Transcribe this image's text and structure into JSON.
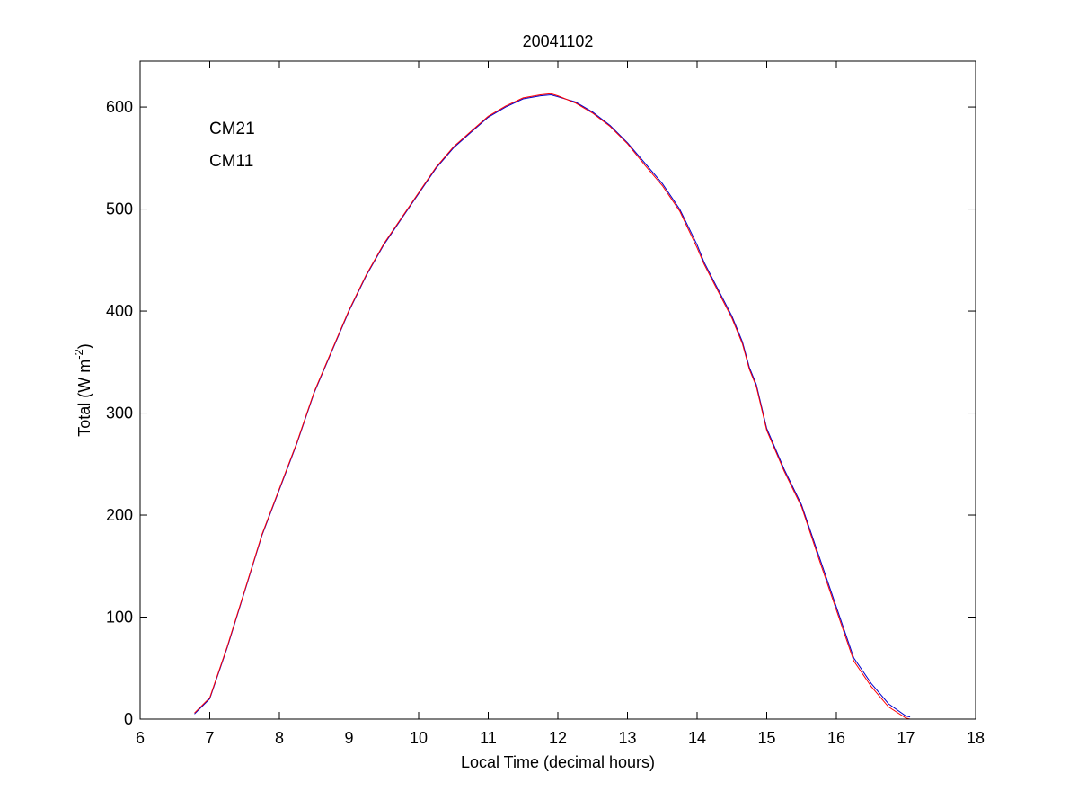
{
  "chart_data": {
    "type": "line",
    "title": "20041102",
    "xlabel": "Local Time (decimal hours)",
    "ylabel": "Total (W m",
    "ylabel_superscript": "-2",
    "ylabel_suffix": ")",
    "xlim": [
      6,
      18
    ],
    "ylim": [
      0,
      645
    ],
    "x_ticks": [
      6,
      7,
      8,
      9,
      10,
      11,
      12,
      13,
      14,
      15,
      16,
      17,
      18
    ],
    "y_ticks": [
      0,
      100,
      200,
      300,
      400,
      500,
      600
    ],
    "grid": false,
    "legend_position": "top-left",
    "series": [
      {
        "name": "CM21",
        "color": "#0000cc",
        "x": [
          6.78,
          7.0,
          7.25,
          7.5,
          7.75,
          8.0,
          8.25,
          8.5,
          8.75,
          9.0,
          9.25,
          9.5,
          9.75,
          10.0,
          10.25,
          10.5,
          10.75,
          11.0,
          11.25,
          11.5,
          11.75,
          11.9,
          12.0,
          12.25,
          12.5,
          12.75,
          13.0,
          13.25,
          13.5,
          13.75,
          14.0,
          14.1,
          14.25,
          14.5,
          14.65,
          14.75,
          14.85,
          15.0,
          15.25,
          15.5,
          15.75,
          16.0,
          16.25,
          16.5,
          16.75,
          17.0,
          17.06
        ],
        "y": [
          5,
          20,
          70,
          125,
          180,
          225,
          270,
          320,
          360,
          400,
          435,
          465,
          490,
          515,
          540,
          560,
          575,
          590,
          600,
          608,
          611,
          612,
          610,
          605,
          595,
          582,
          565,
          545,
          525,
          500,
          465,
          448,
          428,
          395,
          370,
          345,
          328,
          285,
          245,
          210,
          160,
          110,
          60,
          35,
          15,
          3,
          2
        ],
        "values_note": ""
      },
      {
        "name": "CM11",
        "color": "#ff0000",
        "x": [
          6.78,
          7.0,
          7.25,
          7.5,
          7.75,
          8.0,
          8.25,
          8.5,
          8.75,
          9.0,
          9.25,
          9.5,
          9.75,
          10.0,
          10.25,
          10.5,
          10.75,
          11.0,
          11.25,
          11.5,
          11.75,
          11.9,
          12.0,
          12.25,
          12.5,
          12.75,
          13.0,
          13.25,
          13.5,
          13.75,
          14.0,
          14.1,
          14.25,
          14.5,
          14.65,
          14.75,
          14.85,
          15.0,
          15.25,
          15.5,
          15.75,
          16.0,
          16.25,
          16.5,
          16.75,
          17.0,
          17.06
        ],
        "y": [
          6,
          21,
          71,
          126,
          181,
          226,
          271,
          321,
          361,
          401,
          436,
          466,
          491,
          516,
          541,
          561,
          576,
          591,
          601,
          609,
          612,
          613,
          611,
          604,
          594,
          581,
          564,
          543,
          523,
          498,
          462,
          446,
          426,
          393,
          368,
          343,
          326,
          283,
          243,
          208,
          157,
          107,
          57,
          32,
          12,
          1,
          0
        ]
      }
    ]
  }
}
